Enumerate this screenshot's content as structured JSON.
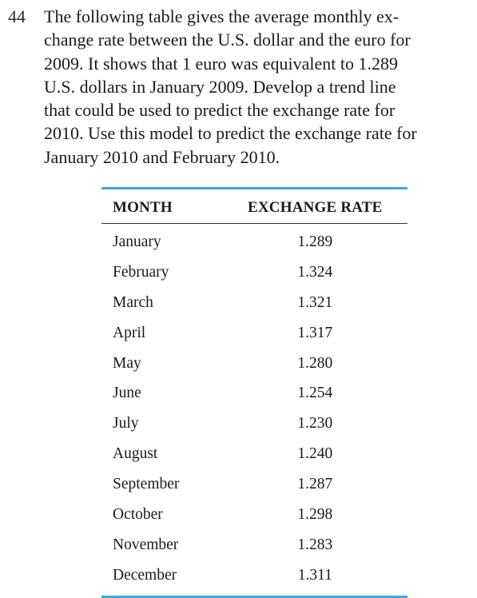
{
  "problem": {
    "number": "44",
    "lines": [
      "The following table gives the average monthly ex-",
      "change rate between the U.S. dollar and the euro for",
      "2009. It shows that 1 euro was equivalent to 1.289",
      "U.S. dollars in January 2009. Develop a trend line",
      "that could be used to predict the exchange rate for",
      "2010. Use this model to predict the exchange rate for",
      "January 2010 and February 2010."
    ]
  },
  "table": {
    "headers": [
      "MONTH",
      "EXCHANGE RATE"
    ],
    "rows": [
      {
        "month": "January",
        "rate": "1.289"
      },
      {
        "month": "February",
        "rate": "1.324"
      },
      {
        "month": "March",
        "rate": "1.321"
      },
      {
        "month": "April",
        "rate": "1.317"
      },
      {
        "month": "May",
        "rate": "1.280"
      },
      {
        "month": "June",
        "rate": "1.254"
      },
      {
        "month": "July",
        "rate": "1.230"
      },
      {
        "month": "August",
        "rate": "1.240"
      },
      {
        "month": "September",
        "rate": "1.287"
      },
      {
        "month": "October",
        "rate": "1.298"
      },
      {
        "month": "November",
        "rate": "1.283"
      },
      {
        "month": "December",
        "rate": "1.311"
      }
    ]
  },
  "colors": {
    "table_rule": "#3fa7dd",
    "text": "#1a1a1a"
  }
}
